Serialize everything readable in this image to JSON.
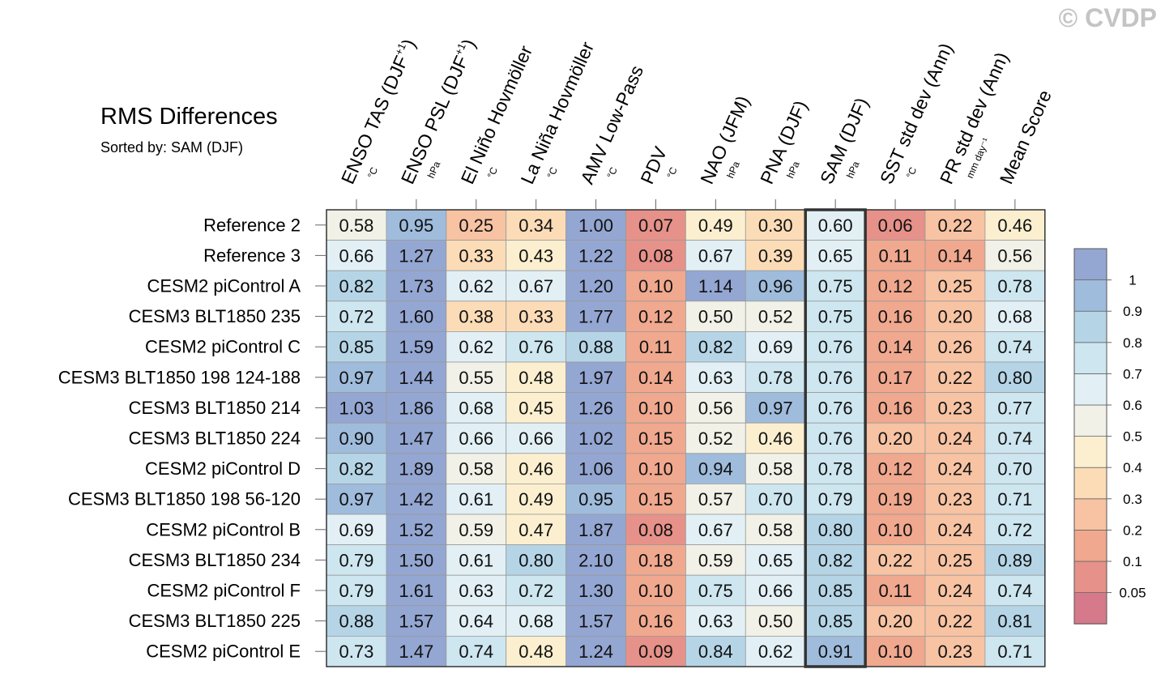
{
  "title": "RMS Differences",
  "subtitle": "Sorted by: SAM (DJF)",
  "watermark": "© CVDP",
  "chart_data": {
    "type": "heatmap",
    "columns": [
      {
        "name": "ENSO TAS (DJF",
        "sup": "+1",
        "close": ")",
        "unit": "°C"
      },
      {
        "name": "ENSO PSL (DJF",
        "sup": "+1",
        "close": ")",
        "unit": "hPa"
      },
      {
        "name": "El Niño Hovmöller",
        "sup": "",
        "close": "",
        "unit": "°C"
      },
      {
        "name": "La Niña Hovmöller",
        "sup": "",
        "close": "",
        "unit": "°C"
      },
      {
        "name": "AMV Low-Pass",
        "sup": "",
        "close": "",
        "unit": "°C"
      },
      {
        "name": "PDV",
        "sup": "",
        "close": "",
        "unit": "°C"
      },
      {
        "name": "NAO (JFM)",
        "sup": "",
        "close": "",
        "unit": "hPa"
      },
      {
        "name": "PNA (DJF)",
        "sup": "",
        "close": "",
        "unit": "hPa"
      },
      {
        "name": "SAM (DJF)",
        "sup": "",
        "close": "",
        "unit": "hPa"
      },
      {
        "name": "SST std dev (Ann)",
        "sup": "",
        "close": "",
        "unit": "°C"
      },
      {
        "name": "PR std dev (Ann)",
        "sup": "",
        "close": "",
        "unit": "mm day⁻¹"
      },
      {
        "name": "Mean Score",
        "sup": "",
        "close": "",
        "unit": ""
      }
    ],
    "rows": [
      "Reference 2",
      "Reference 3",
      "CESM2 piControl A",
      "CESM3 BLT1850 235",
      "CESM2 piControl C",
      "CESM3 BLT1850 198 124-188",
      "CESM3 BLT1850 214",
      "CESM3 BLT1850 224",
      "CESM2 piControl D",
      "CESM3 BLT1850 198 56-120",
      "CESM2 piControl B",
      "CESM3 BLT1850 234",
      "CESM2 piControl F",
      "CESM3 BLT1850 225",
      "CESM2 piControl E"
    ],
    "values": [
      [
        0.58,
        0.95,
        0.25,
        0.34,
        1.0,
        0.07,
        0.49,
        0.3,
        0.6,
        0.06,
        0.22,
        0.46
      ],
      [
        0.66,
        1.27,
        0.33,
        0.43,
        1.22,
        0.08,
        0.67,
        0.39,
        0.65,
        0.11,
        0.14,
        0.56
      ],
      [
        0.82,
        1.73,
        0.62,
        0.67,
        1.2,
        0.1,
        1.14,
        0.96,
        0.75,
        0.12,
        0.25,
        0.78
      ],
      [
        0.72,
        1.6,
        0.38,
        0.33,
        1.77,
        0.12,
        0.5,
        0.52,
        0.75,
        0.16,
        0.2,
        0.68
      ],
      [
        0.85,
        1.59,
        0.62,
        0.76,
        0.88,
        0.11,
        0.82,
        0.69,
        0.76,
        0.14,
        0.26,
        0.74
      ],
      [
        0.97,
        1.44,
        0.55,
        0.48,
        1.97,
        0.14,
        0.63,
        0.78,
        0.76,
        0.17,
        0.22,
        0.8
      ],
      [
        1.03,
        1.86,
        0.68,
        0.45,
        1.26,
        0.1,
        0.56,
        0.97,
        0.76,
        0.16,
        0.23,
        0.77
      ],
      [
        0.9,
        1.47,
        0.66,
        0.66,
        1.02,
        0.15,
        0.52,
        0.46,
        0.76,
        0.2,
        0.24,
        0.74
      ],
      [
        0.82,
        1.89,
        0.58,
        0.46,
        1.06,
        0.1,
        0.94,
        0.58,
        0.78,
        0.12,
        0.24,
        0.7
      ],
      [
        0.97,
        1.42,
        0.61,
        0.49,
        0.95,
        0.15,
        0.57,
        0.7,
        0.79,
        0.19,
        0.23,
        0.71
      ],
      [
        0.69,
        1.52,
        0.59,
        0.47,
        1.87,
        0.08,
        0.67,
        0.58,
        0.8,
        0.1,
        0.24,
        0.72
      ],
      [
        0.79,
        1.5,
        0.61,
        0.8,
        2.1,
        0.18,
        0.59,
        0.65,
        0.82,
        0.22,
        0.25,
        0.89
      ],
      [
        0.79,
        1.61,
        0.63,
        0.72,
        1.3,
        0.1,
        0.75,
        0.66,
        0.85,
        0.11,
        0.24,
        0.74
      ],
      [
        0.88,
        1.57,
        0.64,
        0.68,
        1.57,
        0.16,
        0.63,
        0.5,
        0.85,
        0.2,
        0.22,
        0.81
      ],
      [
        0.73,
        1.47,
        0.74,
        0.48,
        1.24,
        0.09,
        0.84,
        0.62,
        0.91,
        0.1,
        0.23,
        0.71
      ]
    ],
    "highlighted_column": "SAM (DJF)",
    "colorbar": {
      "levels": [
        0.05,
        0.1,
        0.2,
        0.3,
        0.4,
        0.5,
        0.6,
        0.7,
        0.8,
        0.9,
        1
      ],
      "labels": [
        "0.05",
        "0.1",
        "0.2",
        "0.3",
        "0.4",
        "0.5",
        "0.6",
        "0.7",
        "0.8",
        "0.9",
        "1"
      ],
      "colors": [
        "#d6798b",
        "#e69189",
        "#f0a88e",
        "#f7c3a3",
        "#fbdcb7",
        "#fbefcf",
        "#f1f1e7",
        "#e2f0f5",
        "#cde6f0",
        "#b5d5e7",
        "#9fbcdc",
        "#94a6d2"
      ]
    },
    "grid_color": "#9a9a9a",
    "frame_color": "#333333"
  }
}
